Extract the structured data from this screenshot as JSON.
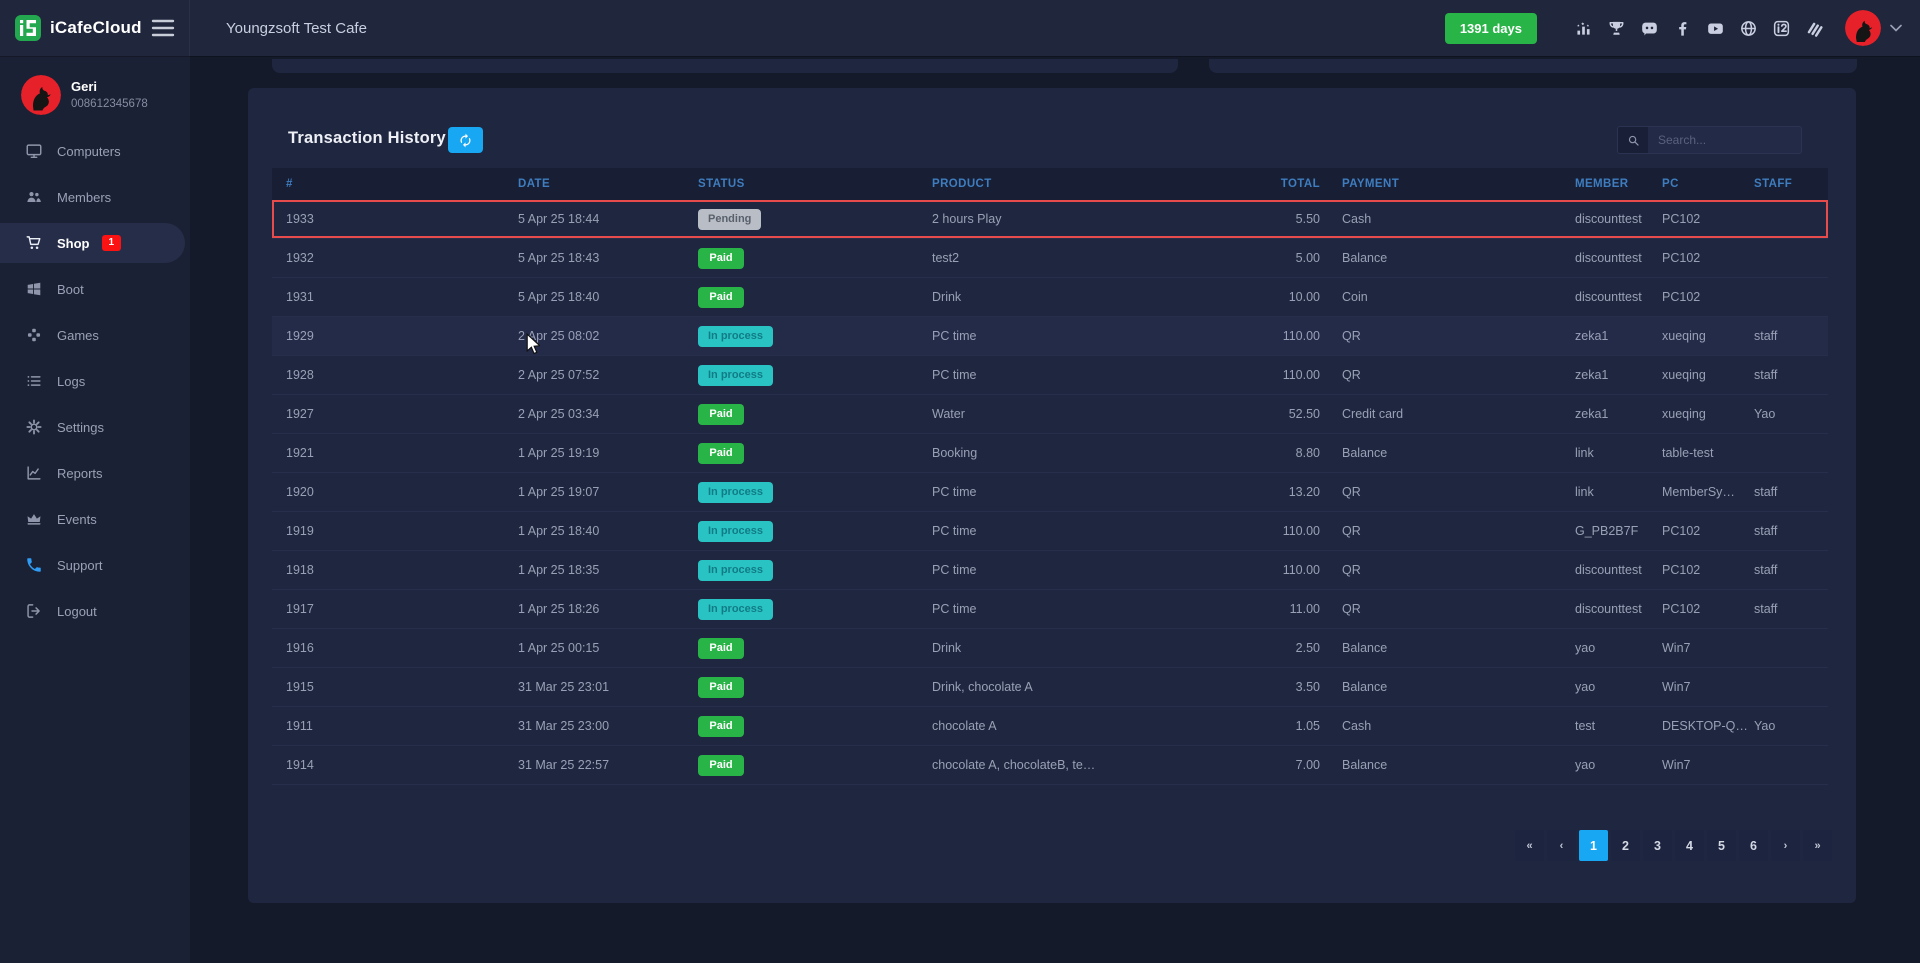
{
  "brand": {
    "name": "iCafeCloud"
  },
  "topbar": {
    "cafe_name": "Youngzsoft Test Cafe",
    "days_badge": "1391 days",
    "icons": [
      "ranking-icon",
      "trophy-icon",
      "discord-icon",
      "facebook-icon",
      "youtube-icon",
      "globe-icon",
      "icafecloud-app-icon",
      "youngzsoft-icon"
    ]
  },
  "user": {
    "name": "Geri",
    "phone": "008612345678"
  },
  "sidebar": {
    "items": [
      {
        "label": "Computers",
        "icon": "computers-icon"
      },
      {
        "label": "Members",
        "icon": "members-icon"
      },
      {
        "label": "Shop",
        "icon": "shop-icon",
        "badge": "1",
        "active": true
      },
      {
        "label": "Boot",
        "icon": "boot-icon"
      },
      {
        "label": "Games",
        "icon": "games-icon"
      },
      {
        "label": "Logs",
        "icon": "logs-icon"
      },
      {
        "label": "Settings",
        "icon": "settings-icon"
      },
      {
        "label": "Reports",
        "icon": "reports-icon"
      },
      {
        "label": "Events",
        "icon": "events-icon"
      },
      {
        "label": "Support",
        "icon": "support-icon",
        "accent": true
      },
      {
        "label": "Logout",
        "icon": "logout-icon"
      }
    ]
  },
  "panel": {
    "title": "Transaction History"
  },
  "search": {
    "placeholder": "Search..."
  },
  "table": {
    "columns": [
      "#",
      "DATE",
      "STATUS",
      "PRODUCT",
      "TOTAL",
      "PAYMENT",
      "MEMBER",
      "PC",
      "STAFF"
    ],
    "rows": [
      {
        "id": "1933",
        "date": "5 Apr 25 18:44",
        "status": "Pending",
        "product": "2 hours Play",
        "total": "5.50",
        "payment": "Cash",
        "member": "discounttest",
        "pc": "PC102",
        "staff": "",
        "highlighted": true
      },
      {
        "id": "1932",
        "date": "5 Apr 25 18:43",
        "status": "Paid",
        "product": "test2",
        "total": "5.00",
        "payment": "Balance",
        "member": "discounttest",
        "pc": "PC102",
        "staff": ""
      },
      {
        "id": "1931",
        "date": "5 Apr 25 18:40",
        "status": "Paid",
        "product": "Drink",
        "total": "10.00",
        "payment": "Coin",
        "member": "discounttest",
        "pc": "PC102",
        "staff": ""
      },
      {
        "id": "1929",
        "date": "2 Apr 25 08:02",
        "status": "In process",
        "product": "PC time",
        "total": "110.00",
        "payment": "QR",
        "member": "zeka1",
        "pc": "xueqing",
        "staff": "staff",
        "hover": true
      },
      {
        "id": "1928",
        "date": "2 Apr 25 07:52",
        "status": "In process",
        "product": "PC time",
        "total": "110.00",
        "payment": "QR",
        "member": "zeka1",
        "pc": "xueqing",
        "staff": "staff"
      },
      {
        "id": "1927",
        "date": "2 Apr 25 03:34",
        "status": "Paid",
        "product": "Water",
        "total": "52.50",
        "payment": "Credit card",
        "member": "zeka1",
        "pc": "xueqing",
        "staff": "Yao"
      },
      {
        "id": "1921",
        "date": "1 Apr 25 19:19",
        "status": "Paid",
        "product": "Booking",
        "total": "8.80",
        "payment": "Balance",
        "member": "link",
        "pc": "table-test",
        "staff": ""
      },
      {
        "id": "1920",
        "date": "1 Apr 25 19:07",
        "status": "In process",
        "product": "PC time",
        "total": "13.20",
        "payment": "QR",
        "member": "link",
        "pc": "MemberSy…",
        "staff": "staff"
      },
      {
        "id": "1919",
        "date": "1 Apr 25 18:40",
        "status": "In process",
        "product": "PC time",
        "total": "110.00",
        "payment": "QR",
        "member": "G_PB2B7F",
        "pc": "PC102",
        "staff": "staff"
      },
      {
        "id": "1918",
        "date": "1 Apr 25 18:35",
        "status": "In process",
        "product": "PC time",
        "total": "110.00",
        "payment": "QR",
        "member": "discounttest",
        "pc": "PC102",
        "staff": "staff"
      },
      {
        "id": "1917",
        "date": "1 Apr 25 18:26",
        "status": "In process",
        "product": "PC time",
        "total": "11.00",
        "payment": "QR",
        "member": "discounttest",
        "pc": "PC102",
        "staff": "staff"
      },
      {
        "id": "1916",
        "date": "1 Apr 25 00:15",
        "status": "Paid",
        "product": "Drink",
        "total": "2.50",
        "payment": "Balance",
        "member": "yao",
        "pc": "Win7",
        "staff": ""
      },
      {
        "id": "1915",
        "date": "31 Mar 25 23:01",
        "status": "Paid",
        "product": "Drink, chocolate A",
        "total": "3.50",
        "payment": "Balance",
        "member": "yao",
        "pc": "Win7",
        "staff": ""
      },
      {
        "id": "1911",
        "date": "31 Mar 25 23:00",
        "status": "Paid",
        "product": "chocolate A",
        "total": "1.05",
        "payment": "Cash",
        "member": "test",
        "pc": "DESKTOP-Q…",
        "staff": "Yao"
      },
      {
        "id": "1914",
        "date": "31 Mar 25 22:57",
        "status": "Paid",
        "product": "chocolate A, chocolateB, te…",
        "total": "7.00",
        "payment": "Balance",
        "member": "yao",
        "pc": "Win7",
        "staff": ""
      }
    ]
  },
  "pagination": {
    "pages": [
      "«",
      "‹",
      "1",
      "2",
      "3",
      "4",
      "5",
      "6",
      "›",
      "»"
    ],
    "active_index": 2
  },
  "colors": {
    "page_bg": "#151a2b",
    "accent_blue": "#18a7f2",
    "green": "#28b446",
    "teal": "#2ac3c3",
    "teal_text": "#117c86",
    "pending_gray": "#b9bec6",
    "red": "#fb1212",
    "highlight_red": "#e84b4b",
    "header_blue": "#3e7dbf",
    "support_blue": "#2e9cf4",
    "avatar_red": "#e62129"
  }
}
